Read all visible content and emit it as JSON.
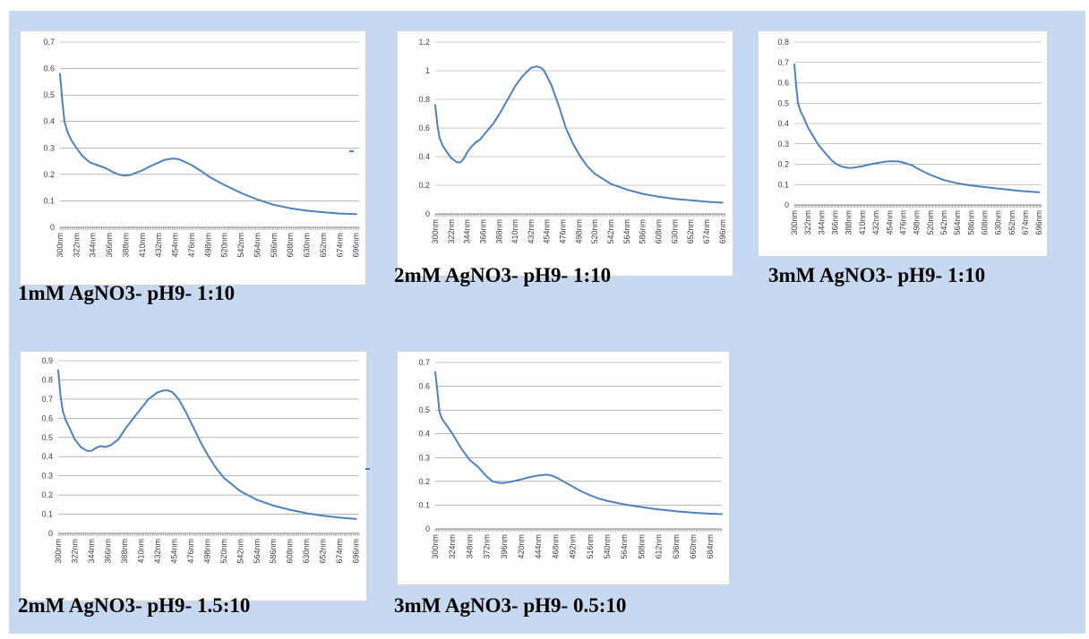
{
  "x_categories": [
    "300nm",
    "322nm",
    "344nm",
    "366nm",
    "388nm",
    "410nm",
    "432nm",
    "454nm",
    "476nm",
    "498nm",
    "520nm",
    "542nm",
    "564nm",
    "586nm",
    "608nm",
    "630nm",
    "652nm",
    "674nm",
    "696nm"
  ],
  "x_categories_alt": [
    "300nm",
    "324nm",
    "348nm",
    "372nm",
    "396nm",
    "420nm",
    "444nm",
    "468nm",
    "492nm",
    "516nm",
    "540nm",
    "564nm",
    "588nm",
    "612nm",
    "636nm",
    "660nm",
    "684nm"
  ],
  "line_color": "#4f81bd",
  "chart_data": [
    {
      "type": "line",
      "caption": "1mM AgNO3- pH9- 1:10",
      "y_ticks": [
        "0",
        "0.1",
        "0.2",
        "0.3",
        "0.4",
        "0.5",
        "0.6",
        "0.7"
      ],
      "ylim": [
        0,
        0.7
      ],
      "xlim": [
        300,
        700
      ],
      "x_tick_start": 300,
      "x_tick_step": 22,
      "x_tick_count": 19,
      "grid": true,
      "x": [
        300,
        303,
        306,
        310,
        315,
        322,
        330,
        340,
        350,
        360,
        370,
        380,
        388,
        395,
        400,
        410,
        420,
        432,
        440,
        450,
        458,
        465,
        476,
        490,
        500,
        520,
        542,
        564,
        586,
        608,
        630,
        652,
        674,
        696
      ],
      "values": [
        0.58,
        0.48,
        0.4,
        0.36,
        0.33,
        0.3,
        0.27,
        0.245,
        0.235,
        0.225,
        0.21,
        0.198,
        0.195,
        0.198,
        0.205,
        0.215,
        0.23,
        0.245,
        0.255,
        0.26,
        0.258,
        0.25,
        0.235,
        0.21,
        0.19,
        0.16,
        0.13,
        0.105,
        0.085,
        0.072,
        0.063,
        0.057,
        0.052,
        0.05
      ]
    },
    {
      "type": "line",
      "caption": "2mM AgNO3- pH9- 1:10",
      "y_ticks": [
        "0",
        "0.2",
        "0.4",
        "0.6",
        "0.8",
        "1",
        "1.2"
      ],
      "ylim": [
        0,
        1.2
      ],
      "xlim": [
        300,
        700
      ],
      "x_tick_start": 300,
      "x_tick_step": 22,
      "x_tick_count": 19,
      "grid": true,
      "x": [
        300,
        303,
        306,
        310,
        315,
        322,
        330,
        335,
        340,
        344,
        350,
        356,
        362,
        370,
        380,
        390,
        400,
        410,
        420,
        432,
        440,
        446,
        450,
        460,
        470,
        480,
        490,
        500,
        510,
        520,
        542,
        564,
        586,
        608,
        630,
        652,
        674,
        696
      ],
      "values": [
        0.76,
        0.62,
        0.53,
        0.48,
        0.44,
        0.39,
        0.36,
        0.36,
        0.39,
        0.43,
        0.47,
        0.5,
        0.52,
        0.57,
        0.63,
        0.71,
        0.8,
        0.89,
        0.96,
        1.02,
        1.03,
        1.02,
        1.0,
        0.9,
        0.76,
        0.6,
        0.49,
        0.4,
        0.33,
        0.28,
        0.21,
        0.17,
        0.14,
        0.12,
        0.105,
        0.095,
        0.085,
        0.078
      ]
    },
    {
      "type": "line",
      "caption": "3mM AgNO3- pH9- 1:10",
      "y_ticks": [
        "0",
        "0.1",
        "0.2",
        "0.3",
        "0.4",
        "0.5",
        "0.6",
        "0.7",
        "0.8"
      ],
      "ylim": [
        0,
        0.8
      ],
      "xlim": [
        300,
        700
      ],
      "x_tick_start": 300,
      "x_tick_step": 22,
      "x_tick_count": 19,
      "grid": true,
      "x": [
        300,
        303,
        306,
        310,
        315,
        322,
        330,
        340,
        350,
        360,
        366,
        375,
        385,
        392,
        400,
        410,
        420,
        432,
        445,
        458,
        470,
        480,
        490,
        500,
        510,
        520,
        542,
        564,
        586,
        608,
        630,
        652,
        674,
        696
      ],
      "values": [
        0.69,
        0.58,
        0.5,
        0.46,
        0.43,
        0.38,
        0.34,
        0.29,
        0.255,
        0.22,
        0.205,
        0.19,
        0.183,
        0.182,
        0.185,
        0.19,
        0.198,
        0.205,
        0.212,
        0.215,
        0.213,
        0.205,
        0.195,
        0.178,
        0.162,
        0.148,
        0.122,
        0.106,
        0.096,
        0.088,
        0.08,
        0.073,
        0.067,
        0.062
      ]
    },
    {
      "type": "line",
      "caption": "2mM AgNO3- pH9- 1.5:10",
      "y_ticks": [
        "0",
        "0.1",
        "0.2",
        "0.3",
        "0.4",
        "0.5",
        "0.6",
        "0.7",
        "0.8",
        "0.9"
      ],
      "ylim": [
        0,
        0.9
      ],
      "xlim": [
        300,
        700
      ],
      "x_tick_start": 300,
      "x_tick_step": 22,
      "x_tick_count": 19,
      "grid": true,
      "x": [
        300,
        303,
        306,
        310,
        315,
        322,
        330,
        338,
        344,
        350,
        356,
        362,
        370,
        380,
        390,
        400,
        410,
        420,
        432,
        440,
        446,
        452,
        460,
        470,
        480,
        490,
        500,
        510,
        520,
        542,
        564,
        586,
        608,
        630,
        652,
        674,
        696
      ],
      "values": [
        0.85,
        0.72,
        0.64,
        0.59,
        0.55,
        0.49,
        0.45,
        0.43,
        0.43,
        0.445,
        0.455,
        0.45,
        0.46,
        0.49,
        0.55,
        0.6,
        0.65,
        0.7,
        0.735,
        0.745,
        0.745,
        0.735,
        0.7,
        0.63,
        0.55,
        0.47,
        0.4,
        0.34,
        0.29,
        0.22,
        0.175,
        0.145,
        0.123,
        0.105,
        0.092,
        0.082,
        0.075
      ]
    },
    {
      "type": "line",
      "caption": "3mM AgNO3- pH9- 0.5:10",
      "y_ticks": [
        "0",
        "0.1",
        "0.2",
        "0.3",
        "0.4",
        "0.5",
        "0.6",
        "0.7"
      ],
      "ylim": [
        0,
        0.7
      ],
      "xlim": [
        300,
        700
      ],
      "x_tick_start": 300,
      "x_tick_step": 24,
      "x_tick_count": 17,
      "grid": true,
      "x": [
        300,
        303,
        306,
        310,
        315,
        324,
        336,
        348,
        360,
        372,
        380,
        390,
        396,
        408,
        420,
        432,
        444,
        456,
        462,
        470,
        480,
        492,
        504,
        516,
        528,
        540,
        564,
        588,
        612,
        636,
        660,
        684,
        700
      ],
      "values": [
        0.66,
        0.58,
        0.49,
        0.46,
        0.44,
        0.4,
        0.34,
        0.29,
        0.26,
        0.22,
        0.2,
        0.193,
        0.193,
        0.2,
        0.208,
        0.218,
        0.225,
        0.228,
        0.225,
        0.215,
        0.198,
        0.178,
        0.158,
        0.142,
        0.128,
        0.118,
        0.103,
        0.092,
        0.082,
        0.074,
        0.068,
        0.064,
        0.062
      ]
    }
  ]
}
